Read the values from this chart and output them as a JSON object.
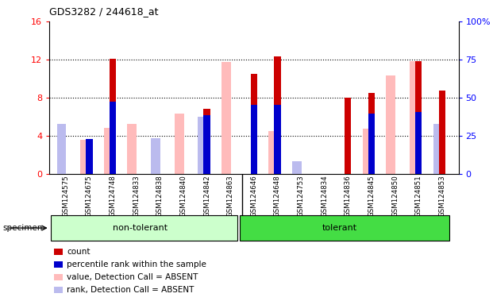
{
  "title": "GDS3282 / 244618_at",
  "specimens": [
    "GSM124575",
    "GSM124675",
    "GSM124748",
    "GSM124833",
    "GSM124838",
    "GSM124840",
    "GSM124842",
    "GSM124863",
    "GSM124646",
    "GSM124648",
    "GSM124753",
    "GSM124834",
    "GSM124836",
    "GSM124845",
    "GSM124850",
    "GSM124851",
    "GSM124853"
  ],
  "non_tolerant_count": 8,
  "tolerant_count": 9,
  "count": [
    0.0,
    0.0,
    12.1,
    0.0,
    0.0,
    0.0,
    6.8,
    0.0,
    10.5,
    12.3,
    0.0,
    0.0,
    8.0,
    8.5,
    0.0,
    11.8,
    8.7
  ],
  "rank_pct": [
    0.0,
    23.0,
    47.5,
    0.0,
    0.0,
    0.0,
    38.5,
    0.0,
    45.5,
    45.5,
    0.0,
    0.0,
    0.0,
    39.5,
    0.0,
    40.5,
    0.0
  ],
  "value_absent": [
    5.0,
    3.6,
    4.8,
    5.2,
    3.4,
    6.3,
    0.0,
    11.7,
    0.0,
    4.5,
    0.4,
    0.0,
    0.0,
    4.7,
    10.3,
    11.8,
    0.0
  ],
  "rank_absent": [
    33.0,
    0.0,
    0.0,
    0.0,
    23.5,
    0.0,
    37.5,
    0.0,
    0.0,
    0.0,
    8.5,
    0.0,
    0.0,
    0.0,
    0.0,
    0.0,
    32.5
  ],
  "ylim_left": [
    0,
    16
  ],
  "ylim_right": [
    0,
    100
  ],
  "yticks_left": [
    0,
    4,
    8,
    12,
    16
  ],
  "yticks_right": [
    0,
    25,
    50,
    75,
    100
  ],
  "color_count": "#cc0000",
  "color_rank": "#0000cc",
  "color_value_absent": "#ffbbbb",
  "color_rank_absent": "#bbbbee",
  "color_group_nontol": "#ccffcc",
  "color_group_tol": "#44dd44",
  "bar_bg": "#d0d0d0"
}
